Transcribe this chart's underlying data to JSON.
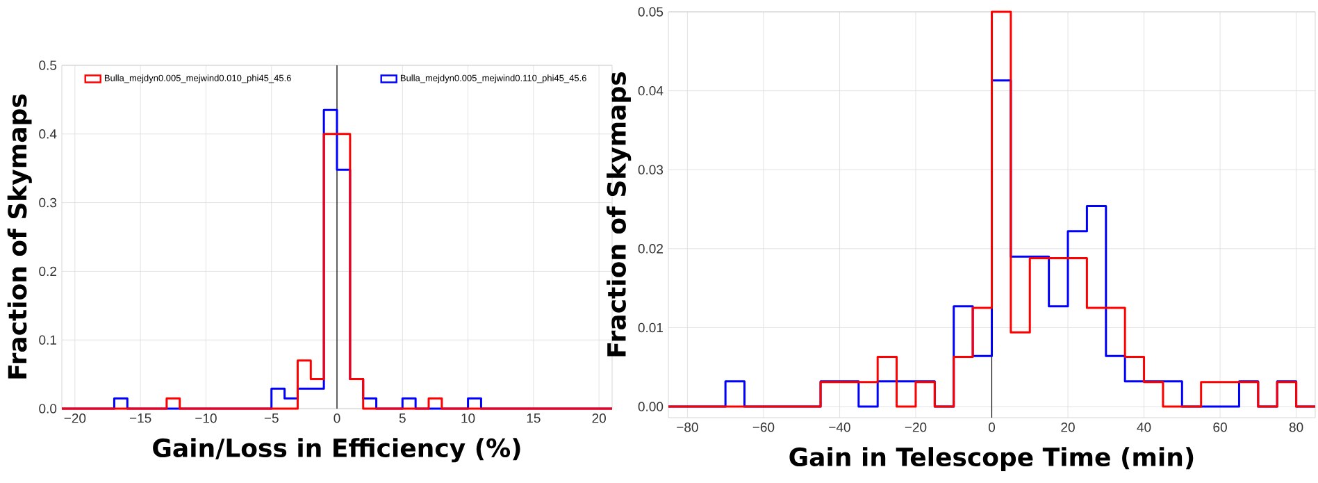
{
  "chart_data": [
    {
      "type": "histogram",
      "xlabel": "Gain/Loss in Efficiency (%)",
      "ylabel": "Fraction of Skymaps",
      "bins": [
        -21,
        -20,
        -19,
        -18,
        -17,
        -16,
        -15,
        -14,
        -13,
        -12,
        -11,
        -10,
        -9,
        -8,
        -7,
        -6,
        -5,
        -4,
        -3,
        -2,
        -1,
        0,
        1,
        2,
        3,
        4,
        5,
        6,
        7,
        8,
        9,
        10,
        11,
        12,
        13,
        14,
        15,
        16,
        17,
        18,
        19,
        20,
        21
      ],
      "series": [
        {
          "name": "Bulla_mejdyn0.005_mejwind0.010_phi45_45.6",
          "color": "#ff0000",
          "values": [
            0,
            0,
            0,
            0,
            0,
            0,
            0,
            0,
            0.015,
            0,
            0,
            0,
            0,
            0,
            0,
            0,
            0,
            0,
            0.07,
            0.043,
            0.4,
            0.4,
            0.043,
            0,
            0,
            0,
            0,
            0,
            0.015,
            0,
            0,
            0,
            0,
            0,
            0,
            0,
            0,
            0,
            0,
            0,
            0,
            0
          ]
        },
        {
          "name": "Bulla_mejdyn0.005_mejwind0.110_phi45_45.6",
          "color": "#0000ff",
          "values": [
            0,
            0,
            0,
            0,
            0.015,
            0,
            0,
            0,
            0,
            0,
            0,
            0,
            0,
            0,
            0,
            0,
            0.029,
            0.015,
            0.029,
            0.029,
            0.435,
            0.348,
            0.043,
            0.015,
            0,
            0,
            0.015,
            0,
            0,
            0,
            0,
            0.015,
            0,
            0,
            0,
            0,
            0,
            0,
            0,
            0,
            0,
            0
          ]
        }
      ],
      "xlim": [
        -21,
        21
      ],
      "ylim": [
        0,
        0.5
      ],
      "xticks": [
        {
          "value": -20,
          "label": "−20"
        },
        {
          "value": -15,
          "label": "−15"
        },
        {
          "value": -10,
          "label": "−10"
        },
        {
          "value": -5,
          "label": "−5"
        },
        0,
        5,
        10,
        15,
        20
      ],
      "yticks": [
        {
          "value": 0,
          "label": "0.0"
        },
        0.1,
        0.2,
        0.3,
        0.4,
        0.5
      ],
      "ref_lines": [
        {
          "axis": "x",
          "value": 0,
          "color": "#000000"
        }
      ],
      "grid": true,
      "legend": "top"
    },
    {
      "type": "histogram",
      "xlabel": "Gain in Telescope Time (min)",
      "ylabel": "Fraction of Skymaps",
      "bins": [
        -85,
        -80,
        -75,
        -70,
        -65,
        -60,
        -55,
        -50,
        -45,
        -40,
        -35,
        -30,
        -25,
        -20,
        -15,
        -10,
        -5,
        0,
        5,
        10,
        15,
        20,
        25,
        30,
        35,
        40,
        45,
        50,
        55,
        60,
        65,
        70,
        75,
        80,
        85
      ],
      "series": [
        {
          "color": "#ff0000",
          "values": [
            0,
            0,
            0,
            0,
            0,
            0,
            0,
            0,
            0.0031,
            0.0031,
            0.0031,
            0.0063,
            0,
            0.0031,
            0,
            0.0063,
            0.0125,
            0.05,
            0.0094,
            0.0188,
            0.0188,
            0.0188,
            0.0125,
            0.0125,
            0.0063,
            0.0031,
            0,
            0,
            0.0031,
            0.0031,
            0.0031,
            0,
            0.0031,
            0
          ]
        },
        {
          "color": "#0000ff",
          "values": [
            0,
            0,
            0,
            0.0032,
            0,
            0,
            0,
            0,
            0.0032,
            0.0032,
            0,
            0.0032,
            0.0032,
            0.0032,
            0,
            0.0127,
            0.0064,
            0.0413,
            0.019,
            0.019,
            0.0127,
            0.0222,
            0.0254,
            0.0064,
            0.0032,
            0.0032,
            0.0032,
            0,
            0,
            0,
            0.0032,
            0,
            0.0032,
            0
          ]
        }
      ],
      "xlim": [
        -85,
        85
      ],
      "ylim": [
        -0.0014,
        0.05
      ],
      "xticks": [
        {
          "value": -80,
          "label": "−80"
        },
        {
          "value": -60,
          "label": "−60"
        },
        {
          "value": -40,
          "label": "−40"
        },
        {
          "value": -20,
          "label": "−20"
        },
        0,
        20,
        40,
        60,
        80
      ],
      "yticks": [
        {
          "value": 0,
          "label": "0.00"
        },
        {
          "value": 0.01,
          "label": "0.01"
        },
        {
          "value": 0.02,
          "label": "0.02"
        },
        {
          "value": 0.03,
          "label": "0.03"
        },
        {
          "value": 0.04,
          "label": "0.04"
        },
        {
          "value": 0.05,
          "label": "0.05"
        }
      ],
      "ref_lines": [
        {
          "axis": "x",
          "value": 0,
          "color": "#000000"
        }
      ],
      "grid": true
    }
  ]
}
